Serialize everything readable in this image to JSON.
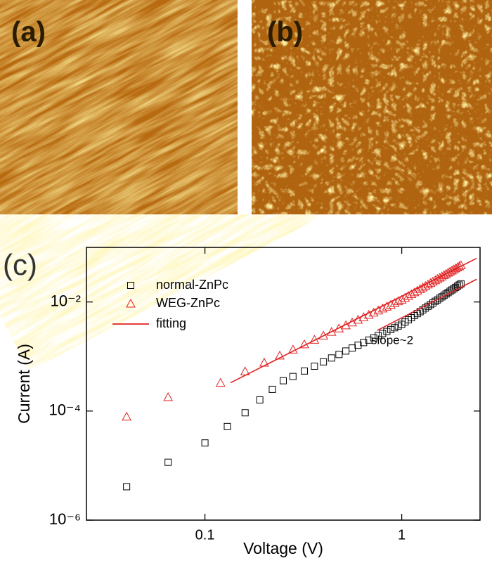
{
  "panels": {
    "a": {
      "label": "(a)"
    },
    "b": {
      "label": "(b)"
    }
  },
  "chart_data": {
    "type": "scatter",
    "panel_label": "(c)",
    "x_label": "Voltage (V)",
    "y_label": "Current (A)",
    "xlog": true,
    "ylog": true,
    "xlim": [
      0.025,
      2.5
    ],
    "ylim": [
      1e-06,
      0.1
    ],
    "xticks": [
      0.1,
      1
    ],
    "yticks": [
      {
        "value": 0.01,
        "label": "10⁻²"
      },
      {
        "value": 0.0001,
        "label": "10⁻⁴"
      },
      {
        "value": 1e-06,
        "label": "10⁻⁶"
      }
    ],
    "annotation": "slope~2",
    "series": [
      {
        "name": "normal-ZnPc",
        "color": "#000000",
        "marker": "square",
        "x": [
          0.04,
          0.065,
          0.1,
          0.13,
          0.16,
          0.19,
          0.22,
          0.25,
          0.28,
          0.32,
          0.36,
          0.4,
          0.44,
          0.48,
          0.52,
          0.56,
          0.6,
          0.64,
          0.68,
          0.72,
          0.76,
          0.8,
          0.84,
          0.88,
          0.92,
          0.96,
          1,
          1.04,
          1.08,
          1.12,
          1.16,
          1.2,
          1.24,
          1.28,
          1.32,
          1.36,
          1.4,
          1.44,
          1.48,
          1.52,
          1.56,
          1.6,
          1.64,
          1.68,
          1.72,
          1.76,
          1.8,
          1.84,
          1.88,
          1.92,
          1.96,
          2
        ],
        "values": [
          4.1e-06,
          1.15e-05,
          2.6e-05,
          5.2e-05,
          9.3e-05,
          0.00016,
          0.00025,
          0.00036,
          0.00043,
          0.000542,
          0.000664,
          0.000797,
          0.00094,
          0.00109,
          0.00126,
          0.00143,
          0.00161,
          0.0018,
          0.002,
          0.0022,
          0.00242,
          0.00264,
          0.00288,
          0.00312,
          0.00337,
          0.00362,
          0.00389,
          0.00429,
          0.00471,
          0.00515,
          0.00562,
          0.00611,
          0.00662,
          0.00716,
          0.00773,
          0.00832,
          0.00893,
          0.00958,
          0.0103,
          0.0109,
          0.0117,
          0.0124,
          0.0132,
          0.014,
          0.0148,
          0.0157,
          0.0166,
          0.0175,
          0.0185,
          0.0195,
          0.0205,
          0.0215
        ]
      },
      {
        "name": "WEG-ZnPc",
        "color": "#e02020",
        "marker": "triangle",
        "x": [
          0.04,
          0.065,
          0.12,
          0.16,
          0.2,
          0.24,
          0.28,
          0.32,
          0.36,
          0.4,
          0.44,
          0.48,
          0.52,
          0.56,
          0.6,
          0.64,
          0.68,
          0.72,
          0.76,
          0.8,
          0.84,
          0.88,
          0.92,
          0.96,
          1,
          1.04,
          1.08,
          1.12,
          1.16,
          1.2,
          1.24,
          1.28,
          1.32,
          1.36,
          1.4,
          1.44,
          1.48,
          1.52,
          1.56,
          1.6,
          1.64,
          1.68,
          1.72,
          1.76,
          1.8,
          1.84,
          1.88,
          1.92,
          1.96,
          2
        ],
        "values": [
          7.9e-05,
          0.00018,
          0.00033,
          0.000533,
          0.000771,
          0.00104,
          0.00134,
          0.00167,
          0.00203,
          0.00242,
          0.00283,
          0.00327,
          0.00373,
          0.00421,
          0.00472,
          0.00525,
          0.00581,
          0.00638,
          0.00697,
          0.00759,
          0.00822,
          0.00888,
          0.00955,
          0.0103,
          0.011,
          0.0119,
          0.0129,
          0.0139,
          0.015,
          0.0161,
          0.0172,
          0.0184,
          0.0196,
          0.0209,
          0.0222,
          0.0236,
          0.025,
          0.0264,
          0.0279,
          0.0294,
          0.031,
          0.0326,
          0.0343,
          0.036,
          0.0377,
          0.0395,
          0.0413,
          0.0432,
          0.0451,
          0.047
        ]
      },
      {
        "name": "fitting",
        "color": "#e02020",
        "marker": "line",
        "x": [
          0.135,
          2.4,
          null,
          0.75,
          2.4
        ],
        "values": [
          0.00033,
          0.063,
          null,
          0.003,
          0.026
        ]
      }
    ]
  }
}
